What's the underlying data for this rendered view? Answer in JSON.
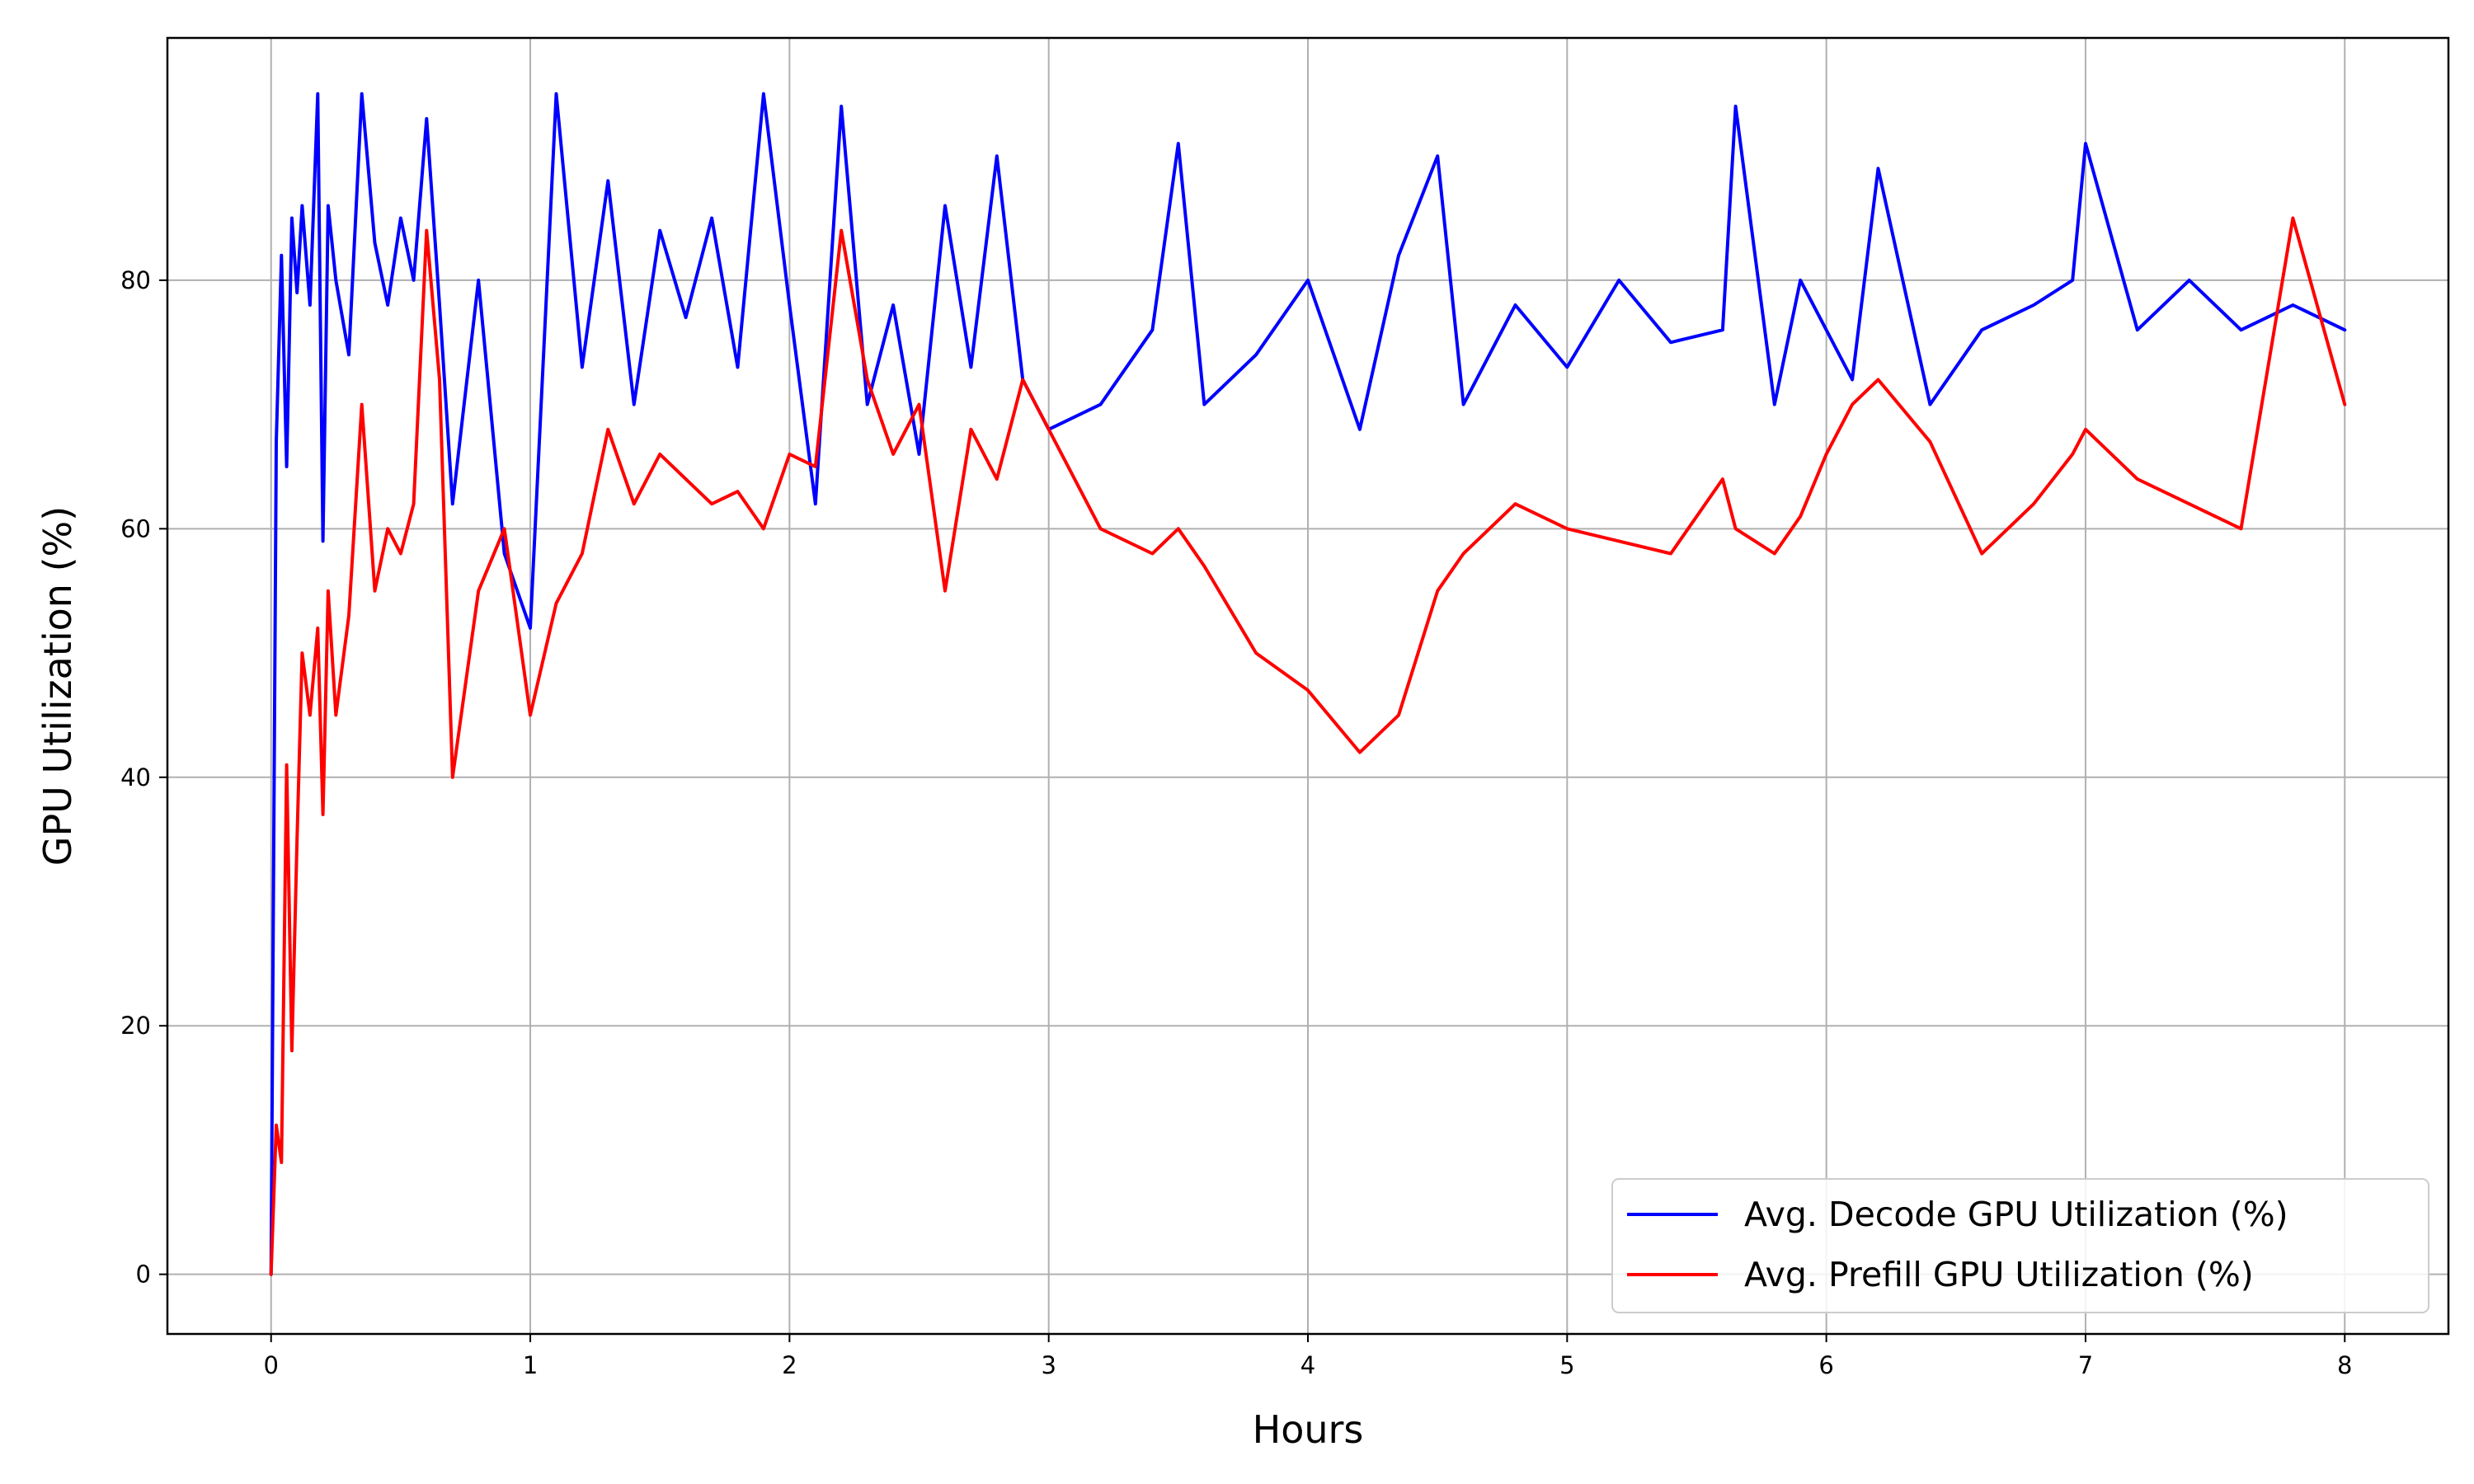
{
  "chart_data": {
    "type": "line",
    "title": "",
    "xlabel": "Hours",
    "ylabel": "GPU Utilization (%)",
    "xlim": [
      -0.4,
      8.4
    ],
    "ylim": [
      -4.8,
      99.5
    ],
    "xticks": [
      "0",
      "1",
      "2",
      "3",
      "4",
      "5",
      "6",
      "7",
      "8"
    ],
    "yticks": [
      "0",
      "20",
      "40",
      "60",
      "80"
    ],
    "grid": true,
    "legend_position": "lower-right",
    "series": [
      {
        "name": "Avg. Decode GPU Utilization (%)",
        "color": "#0000ff",
        "x": [
          0,
          0.02,
          0.04,
          0.06,
          0.08,
          0.1,
          0.12,
          0.15,
          0.18,
          0.2,
          0.22,
          0.25,
          0.3,
          0.35,
          0.4,
          0.45,
          0.5,
          0.55,
          0.6,
          0.65,
          0.7,
          0.8,
          0.9,
          1.0,
          1.1,
          1.2,
          1.3,
          1.4,
          1.5,
          1.6,
          1.7,
          1.8,
          1.9,
          2.0,
          2.1,
          2.2,
          2.3,
          2.4,
          2.5,
          2.6,
          2.7,
          2.8,
          2.9,
          3.0,
          3.2,
          3.4,
          3.5,
          3.6,
          3.8,
          4.0,
          4.2,
          4.35,
          4.5,
          4.6,
          4.8,
          5.0,
          5.2,
          5.4,
          5.6,
          5.65,
          5.8,
          5.9,
          6.0,
          6.1,
          6.2,
          6.4,
          6.6,
          6.8,
          6.95,
          7.0,
          7.2,
          7.4,
          7.6,
          7.8,
          8.0
        ],
        "values": [
          0,
          67,
          82,
          65,
          85,
          79,
          86,
          78,
          95,
          59,
          86,
          80,
          74,
          95,
          83,
          78,
          85,
          80,
          93,
          78,
          62,
          80,
          58,
          52,
          95,
          73,
          88,
          70,
          84,
          77,
          85,
          73,
          95,
          78,
          62,
          94,
          70,
          78,
          66,
          86,
          73,
          90,
          72,
          68,
          70,
          76,
          91,
          70,
          74,
          80,
          68,
          82,
          90,
          70,
          78,
          73,
          80,
          75,
          76,
          94,
          70,
          80,
          76,
          72,
          89,
          70,
          76,
          78,
          80,
          91,
          76,
          80,
          76,
          78,
          76
        ]
      },
      {
        "name": "Avg. Prefill GPU Utilization (%)",
        "color": "#ff0000",
        "x": [
          0,
          0.02,
          0.04,
          0.06,
          0.08,
          0.1,
          0.12,
          0.15,
          0.18,
          0.2,
          0.22,
          0.25,
          0.3,
          0.35,
          0.4,
          0.45,
          0.5,
          0.55,
          0.6,
          0.65,
          0.7,
          0.8,
          0.9,
          1.0,
          1.1,
          1.2,
          1.3,
          1.4,
          1.5,
          1.6,
          1.7,
          1.8,
          1.9,
          2.0,
          2.1,
          2.2,
          2.3,
          2.4,
          2.5,
          2.6,
          2.7,
          2.8,
          2.9,
          3.0,
          3.2,
          3.4,
          3.5,
          3.6,
          3.8,
          4.0,
          4.2,
          4.35,
          4.5,
          4.6,
          4.8,
          5.0,
          5.2,
          5.4,
          5.6,
          5.65,
          5.8,
          5.9,
          6.0,
          6.1,
          6.2,
          6.4,
          6.6,
          6.8,
          6.95,
          7.0,
          7.2,
          7.4,
          7.6,
          7.8,
          8.0
        ],
        "values": [
          0,
          12,
          9,
          41,
          18,
          35,
          50,
          45,
          52,
          37,
          55,
          45,
          53,
          70,
          55,
          60,
          58,
          62,
          84,
          72,
          40,
          55,
          60,
          45,
          54,
          58,
          68,
          62,
          66,
          64,
          62,
          63,
          60,
          66,
          65,
          84,
          72,
          66,
          70,
          55,
          68,
          64,
          72,
          68,
          60,
          58,
          60,
          57,
          50,
          47,
          42,
          45,
          55,
          58,
          62,
          60,
          59,
          58,
          64,
          60,
          58,
          61,
          66,
          70,
          72,
          67,
          58,
          62,
          66,
          68,
          64,
          62,
          60,
          85,
          70
        ]
      }
    ]
  }
}
